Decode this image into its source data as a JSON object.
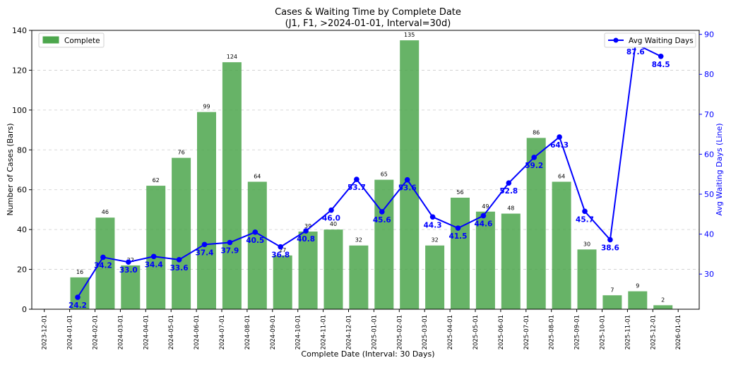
{
  "chart_data": {
    "type": "bar+line",
    "title": "Cases & Waiting Time by Complete Date",
    "subtitle": "(J1, F1, >2024-01-01, Interval=30d)",
    "xlabel": "Complete Date (Interval: 30 Days)",
    "ylabel_left": "Number of Cases (Bars)",
    "ylabel_right": "Avg Waiting Days (Line)",
    "x_ticks": [
      "2023-12-01",
      "2024-01-01",
      "2024-02-01",
      "2024-03-01",
      "2024-04-01",
      "2024-05-01",
      "2024-06-01",
      "2024-07-01",
      "2024-08-01",
      "2024-09-01",
      "2024-10-01",
      "2024-11-01",
      "2024-12-01",
      "2025-01-01",
      "2025-02-01",
      "2025-03-01",
      "2025-04-01",
      "2025-05-01",
      "2025-06-01",
      "2025-07-01",
      "2025-08-01",
      "2025-09-01",
      "2025-10-01",
      "2025-11-01",
      "2025-12-01",
      "2026-01-01"
    ],
    "ylim_left": [
      0,
      140
    ],
    "yticks_left": [
      0,
      20,
      40,
      60,
      80,
      100,
      120,
      140
    ],
    "ylim_right": [
      21.2,
      91
    ],
    "yticks_right": [
      30,
      40,
      50,
      60,
      70,
      80,
      90
    ],
    "grid": "horizontal dashed",
    "bar_series": {
      "name": "Complete",
      "color": "#4ca64c",
      "values": [
        16,
        46,
        22,
        62,
        76,
        99,
        124,
        64,
        27,
        39,
        40,
        32,
        65,
        135,
        32,
        56,
        49,
        48,
        86,
        64,
        30,
        7,
        9,
        2
      ],
      "labels": [
        "16",
        "46",
        "22",
        "62",
        "76",
        "99",
        "124",
        "64",
        "27",
        "39",
        "40",
        "32",
        "65",
        "135",
        "32",
        "56",
        "49",
        "48",
        "86",
        "64",
        "30",
        "7",
        "9",
        "2"
      ]
    },
    "line_series": {
      "name": "Avg Waiting Days",
      "color": "#0000ff",
      "values": [
        24.2,
        34.2,
        33.0,
        34.4,
        33.6,
        37.4,
        37.9,
        40.5,
        36.8,
        40.8,
        46.0,
        53.7,
        45.6,
        53.6,
        44.3,
        41.5,
        44.6,
        52.8,
        59.2,
        64.3,
        45.7,
        38.6,
        87.6,
        84.5
      ],
      "labels": [
        "24.2",
        "34.2",
        "33.0",
        "34.4",
        "33.6",
        "37.4",
        "37.9",
        "40.5",
        "36.8",
        "40.8",
        "46.0",
        "53.7",
        "45.6",
        "53.6",
        "44.3",
        "41.5",
        "44.6",
        "52.8",
        "59.2",
        "64.3",
        "45.7",
        "38.6",
        "87.6",
        "84.5"
      ]
    },
    "legend_left": "top-left",
    "legend_right": "top-right"
  }
}
